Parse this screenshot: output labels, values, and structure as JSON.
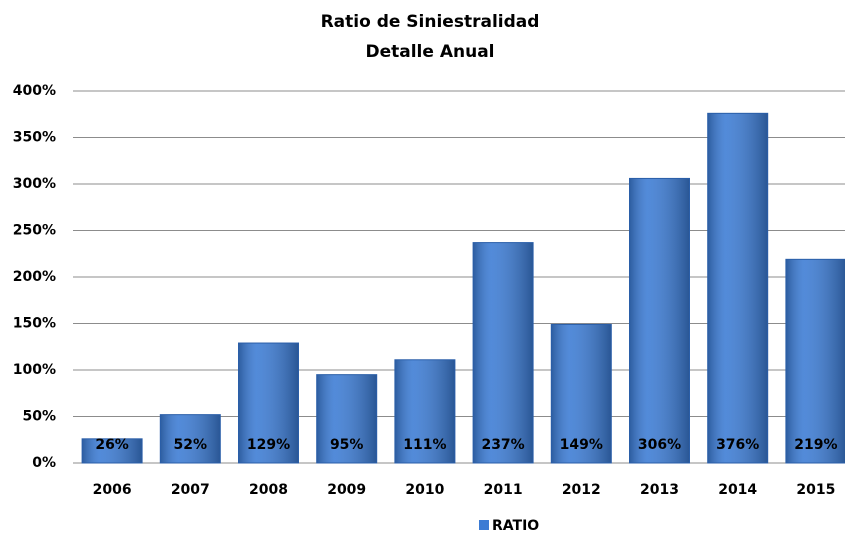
{
  "chart_data": {
    "type": "bar",
    "title": "Ratio de Siniestralidad",
    "subtitle": "Detalle Anual",
    "categories": [
      "2006",
      "2007",
      "2008",
      "2009",
      "2010",
      "2011",
      "2012",
      "2013",
      "2014",
      "2015"
    ],
    "series": [
      {
        "name": "RATIO",
        "color": "#3b7bd4",
        "values": [
          26,
          52,
          129,
          95,
          111,
          237,
          149,
          306,
          376,
          219
        ],
        "value_labels": [
          "26%",
          "52%",
          "129%",
          "95%",
          "111%",
          "237%",
          "149%",
          "306%",
          "376%",
          "219%"
        ]
      }
    ],
    "ylim": [
      0,
      400
    ],
    "yticks": [
      {
        "value": 0,
        "label": "0%"
      },
      {
        "value": 50,
        "label": "50%"
      },
      {
        "value": 100,
        "label": "100%"
      },
      {
        "value": 150,
        "label": "150%"
      },
      {
        "value": 200,
        "label": "200%"
      },
      {
        "value": 250,
        "label": "250%"
      },
      {
        "value": 300,
        "label": "300%"
      },
      {
        "value": 350,
        "label": "350%"
      },
      {
        "value": 400,
        "label": "400%"
      }
    ],
    "grid": true,
    "legend": "bottom"
  }
}
